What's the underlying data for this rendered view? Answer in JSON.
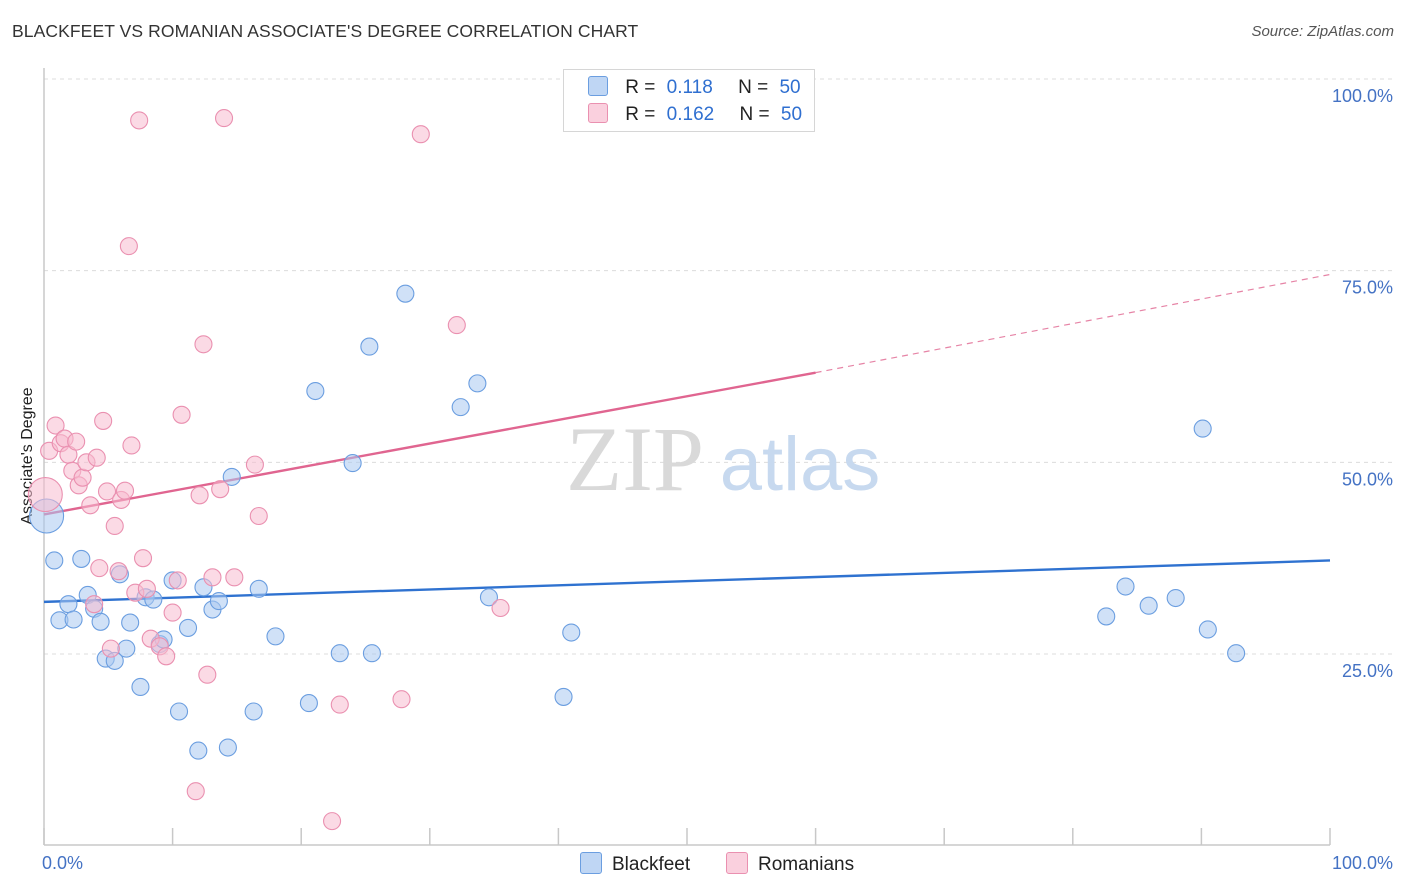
{
  "header": {
    "title": "BLACKFEET VS ROMANIAN ASSOCIATE'S DEGREE CORRELATION CHART",
    "source": "Source: ZipAtlas.com"
  },
  "watermark": {
    "zip": "ZIP",
    "atlas": "atlas"
  },
  "legend": {
    "rows": [
      {
        "r_label": "R =",
        "r_value": "0.118",
        "n_label": "N =",
        "n_value": "50"
      },
      {
        "r_label": "R =",
        "r_value": "0.162",
        "n_label": "N =",
        "n_value": "50"
      }
    ]
  },
  "bottom_legend": {
    "items": [
      "Blackfeet",
      "Romanians"
    ]
  },
  "colors": {
    "blackfeet_fill": "#a9c8f0",
    "blackfeet_stroke": "#6b9ee0",
    "blackfeet_line": "#2f72d0",
    "romanians_fill": "#f7bcd0",
    "romanians_stroke": "#ea90b0",
    "romanians_line": "#e06590",
    "axis_text": "#4472c4"
  },
  "chart_data": {
    "type": "scatter",
    "title": "BLACKFEET VS ROMANIAN ASSOCIATE'S DEGREE CORRELATION CHART",
    "xlabel": "",
    "ylabel": "Associate's Degree",
    "xlim": [
      0,
      100
    ],
    "ylim": [
      0,
      102
    ],
    "x_tick_labels": [
      "0.0%",
      "100.0%"
    ],
    "y_ticks": [
      25,
      50,
      75,
      100
    ],
    "y_tick_labels": [
      "25.0%",
      "50.0%",
      "75.0%",
      "100.0%"
    ],
    "grid": true,
    "series": [
      {
        "name": "Blackfeet",
        "r": 0.118,
        "n": 50,
        "trend": {
          "x0": 0,
          "y0": 31.8,
          "x1": 100,
          "y1": 37.2
        },
        "points": [
          [
            0.2,
            43.0
          ],
          [
            0.8,
            37.2
          ],
          [
            1.2,
            29.4
          ],
          [
            1.9,
            31.5
          ],
          [
            2.3,
            29.5
          ],
          [
            2.9,
            37.4
          ],
          [
            3.4,
            32.7
          ],
          [
            3.9,
            30.9
          ],
          [
            4.4,
            29.2
          ],
          [
            4.8,
            24.4
          ],
          [
            5.5,
            24.1
          ],
          [
            5.9,
            35.4
          ],
          [
            6.4,
            25.7
          ],
          [
            6.7,
            29.1
          ],
          [
            7.5,
            20.7
          ],
          [
            7.9,
            32.4
          ],
          [
            8.5,
            32.1
          ],
          [
            9.0,
            26.3
          ],
          [
            9.3,
            26.9
          ],
          [
            10.0,
            34.6
          ],
          [
            10.5,
            17.5
          ],
          [
            11.2,
            28.4
          ],
          [
            12.0,
            12.4
          ],
          [
            12.4,
            33.7
          ],
          [
            13.1,
            30.8
          ],
          [
            13.6,
            31.9
          ],
          [
            14.3,
            12.8
          ],
          [
            14.6,
            48.1
          ],
          [
            16.3,
            17.5
          ],
          [
            16.7,
            33.5
          ],
          [
            18.0,
            27.3
          ],
          [
            20.6,
            18.6
          ],
          [
            21.1,
            59.3
          ],
          [
            23.0,
            25.1
          ],
          [
            24.0,
            49.9
          ],
          [
            25.3,
            65.1
          ],
          [
            25.5,
            25.1
          ],
          [
            28.1,
            72.0
          ],
          [
            32.4,
            57.2
          ],
          [
            33.7,
            60.3
          ],
          [
            34.6,
            32.4
          ],
          [
            40.4,
            19.4
          ],
          [
            41.0,
            27.8
          ],
          [
            82.6,
            29.9
          ],
          [
            84.1,
            33.8
          ],
          [
            85.9,
            31.3
          ],
          [
            88.0,
            32.3
          ],
          [
            90.1,
            54.4
          ],
          [
            90.5,
            28.2
          ],
          [
            92.7,
            25.1
          ]
        ]
      },
      {
        "name": "Romanians",
        "r": 0.162,
        "n": 50,
        "trend": {
          "x0": 0,
          "y0": 43.2,
          "x1": 60,
          "y1": 61.7,
          "dashed_to": {
            "x": 100,
            "y": 74.5
          }
        },
        "points": [
          [
            0.1,
            45.8
          ],
          [
            0.4,
            51.5
          ],
          [
            0.9,
            54.8
          ],
          [
            1.3,
            52.5
          ],
          [
            1.6,
            53.1
          ],
          [
            1.9,
            51.0
          ],
          [
            2.2,
            48.9
          ],
          [
            2.5,
            52.7
          ],
          [
            2.7,
            47.0
          ],
          [
            3.0,
            48.0
          ],
          [
            3.3,
            50.0
          ],
          [
            3.6,
            44.4
          ],
          [
            3.9,
            31.5
          ],
          [
            4.1,
            50.6
          ],
          [
            4.3,
            36.2
          ],
          [
            4.6,
            55.4
          ],
          [
            4.9,
            46.2
          ],
          [
            5.2,
            25.7
          ],
          [
            5.5,
            41.7
          ],
          [
            5.8,
            35.8
          ],
          [
            6.0,
            45.1
          ],
          [
            6.3,
            46.3
          ],
          [
            6.6,
            78.2
          ],
          [
            6.8,
            52.2
          ],
          [
            7.1,
            33.0
          ],
          [
            7.4,
            94.6
          ],
          [
            7.7,
            37.5
          ],
          [
            8.0,
            33.5
          ],
          [
            8.3,
            27.0
          ],
          [
            9.0,
            26.0
          ],
          [
            9.5,
            24.7
          ],
          [
            10.0,
            30.4
          ],
          [
            10.4,
            34.6
          ],
          [
            10.7,
            56.2
          ],
          [
            11.8,
            7.1
          ],
          [
            12.1,
            45.7
          ],
          [
            12.4,
            65.4
          ],
          [
            12.7,
            22.3
          ],
          [
            13.1,
            35.0
          ],
          [
            13.7,
            46.5
          ],
          [
            14.0,
            94.9
          ],
          [
            14.8,
            35.0
          ],
          [
            16.4,
            49.7
          ],
          [
            16.7,
            43.0
          ],
          [
            22.4,
            3.2
          ],
          [
            23.0,
            18.4
          ],
          [
            27.8,
            19.1
          ],
          [
            29.3,
            92.8
          ],
          [
            32.1,
            67.9
          ],
          [
            35.5,
            31.0
          ]
        ]
      }
    ]
  }
}
